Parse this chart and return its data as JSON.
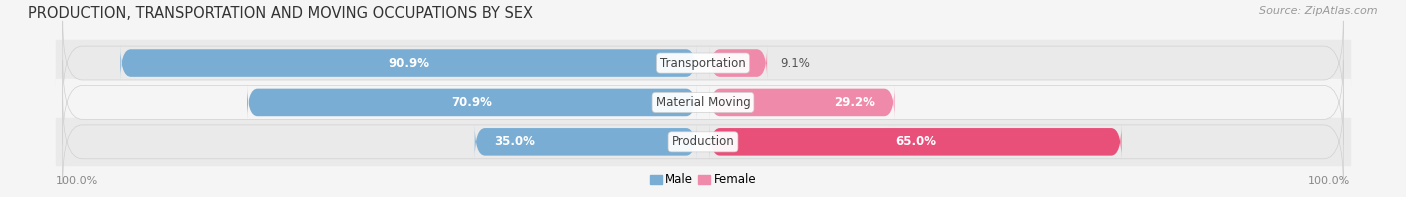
{
  "title": "PRODUCTION, TRANSPORTATION AND MOVING OCCUPATIONS BY SEX",
  "source": "Source: ZipAtlas.com",
  "categories": [
    "Transportation",
    "Material Moving",
    "Production"
  ],
  "male_values": [
    90.9,
    70.9,
    35.0
  ],
  "female_values": [
    9.1,
    29.2,
    65.0
  ],
  "male_color_light": "#92b4d8",
  "male_color_dark": "#f06090",
  "female_color_light": "#f0a0c0",
  "female_color_prod": "#e8507a",
  "male_color": "#7aadd4",
  "female_color": "#f08aaa",
  "female_color_strong": "#e8507a",
  "bg_row_odd": "#eaeaea",
  "bg_row_even": "#f5f5f5",
  "bg_fig": "#f5f5f5",
  "title_fontsize": 10.5,
  "source_fontsize": 8,
  "label_fontsize": 8.5,
  "value_fontsize": 8.5,
  "tick_fontsize": 8,
  "axis_label_left": "100.0%",
  "axis_label_right": "100.0%"
}
